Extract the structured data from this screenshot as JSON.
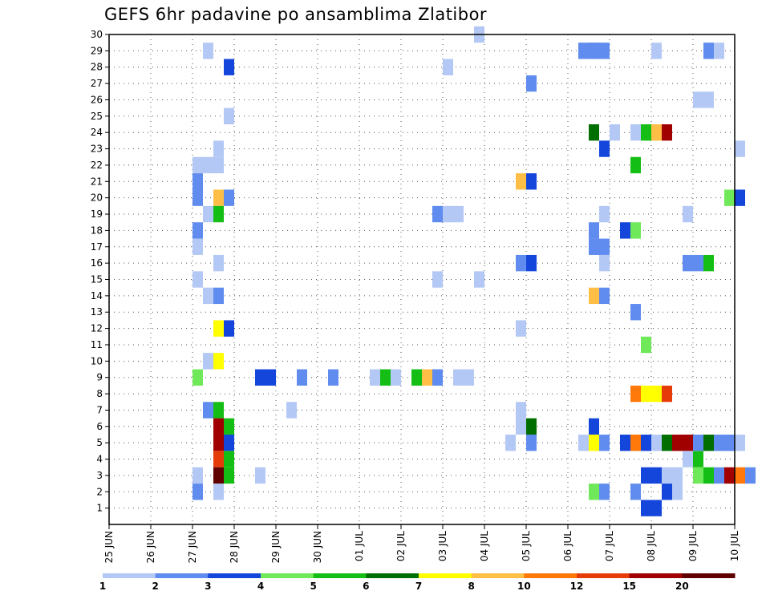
{
  "chart_data": {
    "type": "heatmap",
    "title": "GEFS 6hr padavine po ansamblima Zlatibor",
    "y_ticks": [
      "1",
      "2",
      "3",
      "4",
      "5",
      "6",
      "7",
      "8",
      "9",
      "10",
      "11",
      "12",
      "13",
      "14",
      "15",
      "16",
      "17",
      "18",
      "19",
      "20",
      "21",
      "22",
      "23",
      "24",
      "25",
      "26",
      "27",
      "28",
      "29",
      "30"
    ],
    "x_ticks": [
      "25 JUN",
      "26 JUN",
      "27 JUN",
      "28 JUN",
      "29 JUN",
      "30 JUN",
      "01 JUL",
      "02 JUL",
      "03 JUL",
      "04 JUL",
      "05 JUL",
      "06 JUL",
      "07 JUL",
      "08 JUL",
      "09 JUL",
      "10 JUL"
    ],
    "x_range_days": [
      0,
      15
    ],
    "y_range": [
      0,
      30
    ],
    "time_step_hours": 6,
    "grid": "dotted",
    "colorbar": {
      "labels": [
        "1",
        "2",
        "3",
        "4",
        "5",
        "6",
        "7",
        "8",
        "10",
        "12",
        "15",
        "20"
      ],
      "colors": [
        "#b4c8f5",
        "#5f8cee",
        "#1446dc",
        "#6fe85a",
        "#14be14",
        "#006e00",
        "#ffff00",
        "#ffbe46",
        "#ff780a",
        "#e63c0a",
        "#a00000",
        "#600000"
      ]
    },
    "cells": [
      [
        30,
        8.75,
        1
      ],
      [
        29,
        2.25,
        1
      ],
      [
        29,
        11.25,
        2
      ],
      [
        29,
        11.5,
        2
      ],
      [
        29,
        11.75,
        2
      ],
      [
        29,
        11.5,
        2
      ],
      [
        29,
        13,
        1
      ],
      [
        29,
        14.25,
        2
      ],
      [
        29,
        14.5,
        1
      ],
      [
        28,
        2.75,
        3
      ],
      [
        28,
        8,
        1
      ],
      [
        27,
        10,
        2
      ],
      [
        26,
        14,
        1
      ],
      [
        26,
        14.25,
        1
      ],
      [
        25,
        2.75,
        1
      ],
      [
        24,
        11.5,
        6
      ],
      [
        24,
        12,
        1
      ],
      [
        24,
        12.5,
        1
      ],
      [
        24,
        12.75,
        5
      ],
      [
        24,
        13,
        8
      ],
      [
        24,
        13.25,
        11
      ],
      [
        23,
        2.5,
        1
      ],
      [
        23,
        11.75,
        3
      ],
      [
        23,
        15,
        1
      ],
      [
        22,
        2,
        1
      ],
      [
        22,
        2.25,
        1
      ],
      [
        22,
        2.5,
        1
      ],
      [
        22,
        12.5,
        5
      ],
      [
        21,
        2,
        2
      ],
      [
        21,
        9.75,
        8
      ],
      [
        21,
        10,
        3
      ],
      [
        20,
        2,
        2
      ],
      [
        20,
        2.5,
        8
      ],
      [
        20,
        2.75,
        2
      ],
      [
        20,
        14.75,
        4
      ],
      [
        20,
        15,
        3
      ],
      [
        19,
        2.25,
        1
      ],
      [
        19,
        2.5,
        5
      ],
      [
        19,
        7.75,
        2
      ],
      [
        19,
        8,
        1
      ],
      [
        19,
        8.25,
        1
      ],
      [
        19,
        11.75,
        1
      ],
      [
        19,
        13.75,
        1
      ],
      [
        18,
        2,
        2
      ],
      [
        18,
        11.5,
        2
      ],
      [
        18,
        12.25,
        3
      ],
      [
        18,
        12.5,
        4
      ],
      [
        17,
        2,
        1
      ],
      [
        17,
        11.5,
        2
      ],
      [
        17,
        11.75,
        2
      ],
      [
        16,
        2.5,
        1
      ],
      [
        16,
        9.75,
        2
      ],
      [
        16,
        10,
        3
      ],
      [
        16,
        11.75,
        1
      ],
      [
        16,
        13.75,
        2
      ],
      [
        16,
        14,
        2
      ],
      [
        16,
        14.25,
        5
      ],
      [
        15,
        2,
        1
      ],
      [
        15,
        7.75,
        1
      ],
      [
        15,
        8.75,
        1
      ],
      [
        14,
        2.25,
        1
      ],
      [
        14,
        2.5,
        2
      ],
      [
        14,
        11.5,
        8
      ],
      [
        14,
        11.75,
        2
      ],
      [
        13,
        12.5,
        2
      ],
      [
        12,
        2.5,
        7
      ],
      [
        12,
        2.75,
        3
      ],
      [
        12,
        9.75,
        1
      ],
      [
        11,
        12.75,
        4
      ],
      [
        10,
        2.25,
        1
      ],
      [
        10,
        2.5,
        7
      ],
      [
        9,
        2,
        4
      ],
      [
        9,
        3.5,
        3
      ],
      [
        9,
        3.75,
        3
      ],
      [
        9,
        4.5,
        2
      ],
      [
        9,
        5.25,
        2
      ],
      [
        9,
        6.25,
        1
      ],
      [
        9,
        6.5,
        5
      ],
      [
        9,
        6.75,
        1
      ],
      [
        9,
        7.25,
        5
      ],
      [
        9,
        7.5,
        8
      ],
      [
        9,
        7.75,
        2
      ],
      [
        9,
        8.25,
        1
      ],
      [
        9,
        8.5,
        1
      ],
      [
        8,
        12.5,
        9
      ],
      [
        8,
        12.75,
        7
      ],
      [
        8,
        13,
        7
      ],
      [
        8,
        13.25,
        10
      ],
      [
        7,
        2.25,
        2
      ],
      [
        7,
        2.5,
        5
      ],
      [
        7,
        4.25,
        1
      ],
      [
        7,
        9.75,
        1
      ],
      [
        6,
        2.5,
        11
      ],
      [
        6,
        2.75,
        5
      ],
      [
        6,
        9.75,
        1
      ],
      [
        6,
        10,
        6
      ],
      [
        6,
        11.5,
        3
      ],
      [
        5,
        2.5,
        11
      ],
      [
        5,
        2.75,
        3
      ],
      [
        5,
        9.5,
        1
      ],
      [
        5,
        10,
        2
      ],
      [
        5,
        11.25,
        1
      ],
      [
        5,
        11.5,
        7
      ],
      [
        5,
        11.75,
        2
      ],
      [
        5,
        12.25,
        3
      ],
      [
        5,
        12.5,
        9
      ],
      [
        5,
        12.75,
        3
      ],
      [
        5,
        13,
        1
      ],
      [
        5,
        13.25,
        6
      ],
      [
        5,
        13.5,
        11
      ],
      [
        5,
        13.75,
        11
      ],
      [
        5,
        14,
        2
      ],
      [
        5,
        14.25,
        6
      ],
      [
        5,
        14.5,
        2
      ],
      [
        5,
        14.75,
        1
      ],
      [
        5,
        15,
        1
      ],
      [
        5,
        14.75,
        2
      ],
      [
        4,
        2.5,
        10
      ],
      [
        4,
        2.75,
        5
      ],
      [
        4,
        13.75,
        1
      ],
      [
        4,
        14,
        5
      ],
      [
        3,
        2,
        1
      ],
      [
        3,
        2.5,
        12
      ],
      [
        3,
        2.75,
        5
      ],
      [
        3,
        3.5,
        1
      ],
      [
        3,
        12.75,
        3
      ],
      [
        3,
        13,
        3
      ],
      [
        3,
        13.25,
        1
      ],
      [
        3,
        13.5,
        1
      ],
      [
        3,
        14,
        4
      ],
      [
        3,
        14.25,
        5
      ],
      [
        3,
        14.5,
        2
      ],
      [
        3,
        14.75,
        11
      ],
      [
        3,
        15,
        9
      ],
      [
        3,
        15.25,
        2
      ],
      [
        2,
        2,
        2
      ],
      [
        2,
        2.5,
        1
      ],
      [
        2,
        11.5,
        4
      ],
      [
        2,
        11.75,
        2
      ],
      [
        2,
        12.5,
        2
      ],
      [
        2,
        13.25,
        3
      ],
      [
        2,
        13.5,
        1
      ],
      [
        1,
        12.75,
        3
      ],
      [
        1,
        13,
        3
      ]
    ]
  }
}
